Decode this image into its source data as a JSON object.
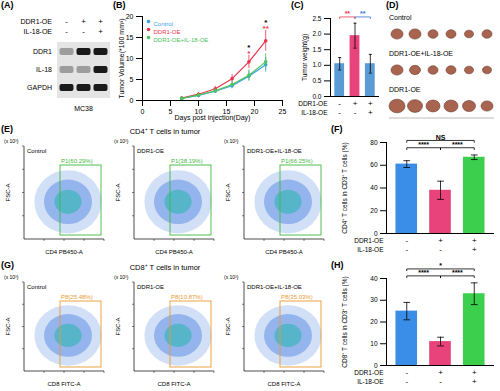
{
  "blot": {
    "panel_label": "(A)",
    "treatments": [
      {
        "name": "DDR1-OE",
        "signs": [
          "-",
          "+",
          "+"
        ]
      },
      {
        "name": "IL-18-OE",
        "signs": [
          "-",
          "-",
          "+"
        ]
      }
    ],
    "bands": [
      "DDR1",
      "IL-18",
      "GAPDH"
    ],
    "cell_line": "MC38"
  },
  "tumor_photo": {
    "panel_label": "(D)",
    "rows": [
      "Control",
      "DDR1-OE+IL-18-OE",
      "DDR1-OE"
    ]
  },
  "chart_data": [
    {
      "panel_label": "(B)",
      "type": "line",
      "x_label": "Days post injection(Day)",
      "y_label": "Tumor Volume(*100 mm³)",
      "x": [
        7,
        10,
        13,
        16,
        19,
        22
      ],
      "series": [
        {
          "name": "Control",
          "color": "#3aa0e8",
          "values": [
            0.5,
            1.2,
            2.2,
            3.5,
            5.8,
            8.5
          ],
          "errors": [
            0.2,
            0.3,
            0.5,
            0.7,
            1.2,
            1.8
          ]
        },
        {
          "name": "DDR1-OE",
          "color": "#e8374c",
          "values": [
            0.6,
            1.5,
            2.8,
            5.2,
            9.2,
            14.2
          ],
          "errors": [
            0.2,
            0.4,
            0.6,
            1.0,
            1.6,
            2.5
          ]
        },
        {
          "name": "DDR1-OE+IL-18-OE",
          "color": "#4cc45a",
          "values": [
            0.5,
            1.3,
            2.3,
            3.8,
            6.0,
            9.2
          ],
          "errors": [
            0.2,
            0.3,
            0.5,
            0.8,
            1.3,
            2.0
          ]
        }
      ],
      "xlim": [
        0,
        25
      ],
      "xticks": [
        0,
        5,
        10,
        15,
        20,
        25
      ],
      "ylim": [
        0,
        20
      ],
      "yticks": [
        0,
        5,
        10,
        15,
        20
      ],
      "marker": "circle",
      "legend": "top-left",
      "annotations": [
        {
          "x": 19,
          "label": "*",
          "color": "#e8374c"
        },
        {
          "x": 19,
          "label": "*",
          "color": "#000000"
        },
        {
          "x": 22,
          "label": "**",
          "color": "#e8374c"
        },
        {
          "x": 22,
          "label": "*",
          "color": "#000000"
        }
      ]
    },
    {
      "panel_label": "(C)",
      "type": "bar",
      "y_label": "Tumor weight(g)",
      "categories": [
        null,
        null,
        null
      ],
      "values": [
        1.05,
        1.95,
        1.05
      ],
      "errors": [
        0.2,
        0.4,
        0.3
      ],
      "colors": [
        "#5b9bd5",
        "#e8437a",
        "#5b9bd5"
      ],
      "ylim": [
        0,
        2.5
      ],
      "yticks": [
        {
          "value": 0,
          "label": "0.0"
        },
        {
          "value": 0.5,
          "label": "0.5"
        },
        {
          "value": 1,
          "label": "1.0"
        },
        {
          "value": 1.5,
          "label": "1.5"
        },
        {
          "value": 2,
          "label": "2.0"
        },
        {
          "value": 2.5,
          "label": "2.5"
        }
      ],
      "treatments": [
        {
          "name": "DDR1-OE",
          "signs": [
            "-",
            "+",
            "+"
          ]
        },
        {
          "name": "IL-18-OE",
          "signs": [
            "-",
            "-",
            "+"
          ]
        }
      ],
      "comparisons": [
        {
          "groups": [
            0,
            1
          ],
          "label": "**",
          "color": "#e8374c"
        },
        {
          "groups": [
            1,
            2
          ],
          "label": "**",
          "color": "#3a6fd8"
        }
      ]
    },
    {
      "panel_label": "(F)",
      "type": "bar",
      "y_label": "CD4⁺ T cells in CD3⁺ T cells (%)",
      "categories": [
        null,
        null,
        null
      ],
      "values": [
        61,
        38,
        67
      ],
      "errors": [
        3,
        8,
        2
      ],
      "colors": [
        "#3b8ee8",
        "#e8437a",
        "#3ccf4e"
      ],
      "ylim": [
        0,
        80
      ],
      "yticks": [
        0,
        20,
        40,
        60,
        80
      ],
      "treatments": [
        {
          "name": "DDR1-OE",
          "signs": [
            "-",
            "+",
            "+"
          ]
        },
        {
          "name": "IL-18-OE",
          "signs": [
            "-",
            "-",
            "+"
          ]
        }
      ],
      "comparisons": [
        {
          "groups": [
            0,
            1
          ],
          "label": "****"
        },
        {
          "groups": [
            1,
            2
          ],
          "label": "****"
        },
        {
          "groups": [
            0,
            2
          ],
          "label": "NS"
        }
      ]
    },
    {
      "panel_label": "(H)",
      "type": "bar",
      "y_label": "CD8⁺ T cells in CD3⁺ T cells (%)",
      "categories": [
        null,
        null,
        null
      ],
      "values": [
        25,
        11,
        33
      ],
      "errors": [
        4,
        2,
        5
      ],
      "colors": [
        "#3b8ee8",
        "#e8437a",
        "#3ccf4e"
      ],
      "ylim": [
        0,
        40
      ],
      "yticks": [
        0,
        10,
        20,
        30,
        40
      ],
      "treatments": [
        {
          "name": "DDR1-OE",
          "signs": [
            "-",
            "+",
            "+"
          ]
        },
        {
          "name": "IL-18-OE",
          "signs": [
            "-",
            "-",
            "+"
          ]
        }
      ],
      "comparisons": [
        {
          "groups": [
            0,
            1
          ],
          "label": "****"
        },
        {
          "groups": [
            1,
            2
          ],
          "label": "****"
        },
        {
          "groups": [
            0,
            2
          ],
          "label": "*"
        }
      ]
    }
  ],
  "flows": [
    {
      "panel_label": "(E)",
      "title": "CD4⁺ T cells in tumor",
      "x_label": "CD4 PB450-A",
      "y_label": "FSC-A",
      "exponent": "(x 10³)",
      "color": "#3fb83f",
      "plots": [
        {
          "name": "Control",
          "gate": "P1(60.29%)"
        },
        {
          "name": "DDR1-OE",
          "gate": "P1(38.19%)"
        },
        {
          "name": "DDR1-OE+IL-18-OE",
          "gate": "P1(66.25%)"
        }
      ]
    },
    {
      "panel_label": "(G)",
      "title": "CD8⁺ T cells in tumor",
      "x_label": "CD8 FITC-A",
      "y_label": "FSC-A",
      "exponent": "(x 10³)",
      "color": "#e89a30",
      "plots": [
        {
          "name": "Control",
          "gate": "P8(25.48%)"
        },
        {
          "name": "DDR1-OE",
          "gate": "P8(10.87%)"
        },
        {
          "name": "DDR1-OE+IL-18-OE",
          "gate": "P8(35.03%)"
        }
      ]
    }
  ]
}
